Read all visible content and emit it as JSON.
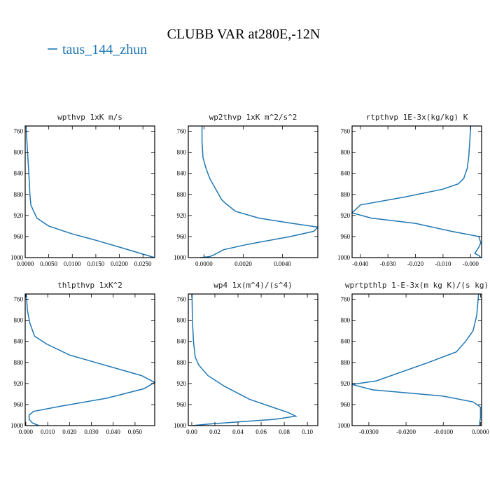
{
  "figure": {
    "title": "CLUBB VAR at280E,-12N",
    "legend": {
      "label": "taus_144_zhun",
      "color": "#1f77b4"
    }
  },
  "chart_data": [
    {
      "type": "line",
      "title": "wpthvp  1xK m/s",
      "xlabel": "",
      "ylabel": "",
      "xlim": [
        0,
        0.0275
      ],
      "ylim": [
        1000,
        750
      ],
      "xticks": [
        0,
        0.005,
        0.01,
        0.015,
        0.02,
        0.025
      ],
      "xtick_labels": [
        "0.0000",
        "0.0050",
        "0.0100",
        "0.0150",
        "0.0200",
        "0.0250"
      ],
      "yticks": [
        760,
        800,
        840,
        880,
        920,
        960,
        1000
      ],
      "series": [
        {
          "color": "#1f77b4",
          "x": [
            0.0002,
            0.0003,
            0.0005,
            0.0007,
            0.0009,
            0.001,
            0.0012,
            0.0018,
            0.0025,
            0.005,
            0.01,
            0.015,
            0.02,
            0.0245,
            0.0275
          ],
          "y": [
            750,
            770,
            800,
            830,
            860,
            880,
            900,
            912,
            925,
            940,
            955,
            967,
            980,
            992,
            1000
          ]
        }
      ]
    },
    {
      "type": "line",
      "title": "wp2thvp  1xK m^2/s^2",
      "xlabel": "",
      "ylabel": "",
      "xlim": [
        -0.0008,
        0.0058
      ],
      "ylim": [
        1000,
        750
      ],
      "xticks": [
        0,
        0.002,
        0.004
      ],
      "xtick_labels": [
        "0.0000",
        "0.0020",
        "0.0040"
      ],
      "yticks": [
        760,
        800,
        840,
        880,
        920,
        960,
        1000
      ],
      "series": [
        {
          "color": "#1f77b4",
          "x": [
            -0.0001,
            -0.0001,
            -5e-05,
            0.0001,
            0.0003,
            0.0006,
            0.0009,
            0.0011,
            0.0016,
            0.0028,
            0.0045,
            0.0058,
            0.0056,
            0.0044,
            0.0022,
            0.001,
            0.0005,
            0.0003,
            -0.0002
          ],
          "y": [
            750,
            780,
            810,
            830,
            850,
            870,
            890,
            897,
            912,
            925,
            935,
            942,
            950,
            960,
            975,
            985,
            995,
            998,
            1000
          ]
        }
      ]
    },
    {
      "type": "line",
      "title": "rtpthvp  1E-3x(kg/kg) K",
      "xlabel": "",
      "ylabel": "",
      "xlim": [
        -0.043,
        0.004
      ],
      "ylim": [
        1000,
        750
      ],
      "xticks": [
        -0.04,
        -0.03,
        -0.02,
        -0.01,
        0
      ],
      "xtick_labels": [
        "-0.040",
        "-0.030",
        "-0.020",
        "-0.010",
        "-0.000"
      ],
      "yticks": [
        760,
        800,
        840,
        880,
        920,
        960,
        1000
      ],
      "series": [
        {
          "color": "#1f77b4",
          "x": [
            0,
            -0.0003,
            -0.0007,
            -0.0012,
            -0.0025,
            -0.0045,
            -0.01,
            -0.024,
            -0.04,
            -0.043,
            -0.036,
            -0.02,
            -0.007,
            0.003,
            0.0037,
            0.003,
            0.0015,
            0.003,
            0.0037
          ],
          "y": [
            750,
            780,
            810,
            830,
            850,
            860,
            870,
            885,
            900,
            915,
            925,
            935,
            950,
            960,
            972,
            980,
            992,
            996,
            1000
          ]
        }
      ]
    },
    {
      "type": "line",
      "title": "thlpthvp  1xK^2",
      "xlabel": "",
      "ylabel": "",
      "xlim": [
        -0.0003,
        0.059
      ],
      "ylim": [
        1000,
        750
      ],
      "xticks": [
        0,
        0.01,
        0.02,
        0.03,
        0.04,
        0.05
      ],
      "xtick_labels": [
        "0.000",
        "0.010",
        "0.020",
        "0.030",
        "0.040",
        "0.050"
      ],
      "yticks": [
        760,
        800,
        840,
        880,
        920,
        960,
        1000
      ],
      "series": [
        {
          "color": "#1f77b4",
          "x": [
            0.0002,
            0.0007,
            0.0018,
            0.004,
            0.0095,
            0.02,
            0.053,
            0.059,
            0.054,
            0.037,
            0.016,
            0.0035,
            0.0015,
            0.0015,
            0.003,
            0.006
          ],
          "y": [
            750,
            780,
            805,
            830,
            845,
            866,
            905,
            918,
            930,
            948,
            963,
            973,
            980,
            988,
            995,
            1000
          ]
        }
      ]
    },
    {
      "type": "line",
      "title": "wp4  1x(m^4)/(s^4)",
      "xlabel": "",
      "ylabel": "",
      "xlim": [
        -0.003,
        0.109
      ],
      "ylim": [
        1000,
        750
      ],
      "xticks": [
        0,
        0.02,
        0.04,
        0.06,
        0.08,
        0.1
      ],
      "xtick_labels": [
        "0.00",
        "0.02",
        "0.04",
        "0.06",
        "0.08",
        "0.10"
      ],
      "yticks": [
        760,
        800,
        840,
        880,
        920,
        960,
        1000
      ],
      "series": [
        {
          "color": "#1f77b4",
          "x": [
            0.0002,
            0.0006,
            0.0015,
            0.003,
            0.006,
            0.014,
            0.028,
            0.05,
            0.083,
            0.09,
            0.072,
            0.04,
            0.015,
            0.005,
            0.001
          ],
          "y": [
            750,
            800,
            840,
            870,
            885,
            905,
            925,
            950,
            975,
            982,
            988,
            993,
            997,
            999,
            1000
          ]
        }
      ]
    },
    {
      "type": "line",
      "title": "wprtpthlp  1-E-3x(m kg K)/(s kg)",
      "xlabel": "",
      "ylabel": "",
      "xlim": [
        -0.0345,
        0.0003
      ],
      "ylim": [
        1000,
        750
      ],
      "xticks": [
        -0.03,
        -0.02,
        -0.01,
        0
      ],
      "xtick_labels": [
        "-0.0300",
        "-0.0200",
        "-0.0100",
        "0.0000"
      ],
      "yticks": [
        760,
        800,
        840,
        880,
        920,
        960,
        1000
      ],
      "series": [
        {
          "color": "#1f77b4",
          "x": [
            -0.0005,
            -0.001,
            -0.002,
            -0.004,
            -0.0065,
            -0.014,
            -0.028,
            -0.0345,
            -0.029,
            -0.01,
            -0.002,
            0,
            0,
            -0.0003
          ],
          "y": [
            750,
            790,
            820,
            840,
            860,
            880,
            915,
            922,
            932,
            944,
            955,
            965,
            985,
            1000
          ]
        }
      ]
    }
  ]
}
